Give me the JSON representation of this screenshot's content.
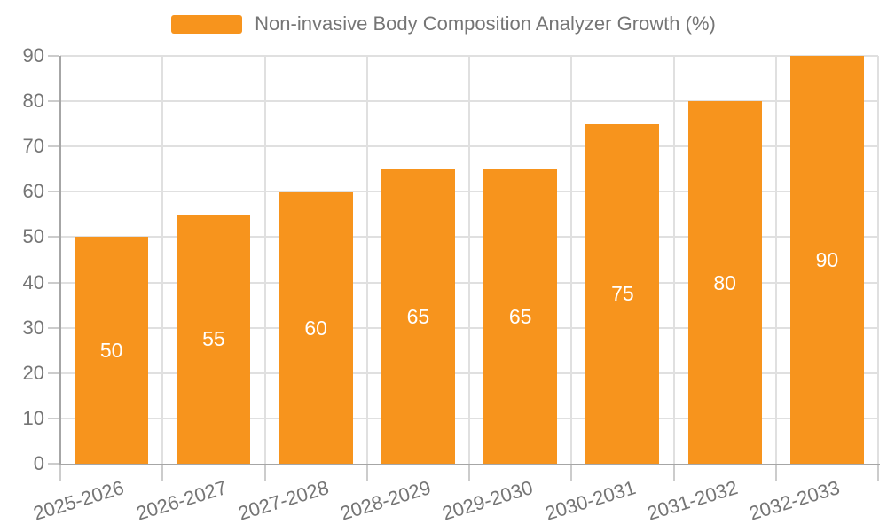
{
  "legend": {
    "label": "Non-invasive Body Composition Analyzer Growth (%)"
  },
  "colors": {
    "bar": "#f7941d",
    "grid": "#e0e0e0",
    "axis": "#a6a6a6",
    "tick": "#cccccc",
    "text": "#757575",
    "bar_label": "#ffffff",
    "background": "#ffffff"
  },
  "chart_data": {
    "type": "bar",
    "title": "Non-invasive Body Composition Analyzer Growth (%)",
    "categories": [
      "2025-2026",
      "2026-2027",
      "2027-2028",
      "2028-2029",
      "2029-2030",
      "2030-2031",
      "2031-2032",
      "2032-2033"
    ],
    "values": [
      50,
      55,
      60,
      65,
      65,
      75,
      80,
      90
    ],
    "xlabel": "",
    "ylabel": "",
    "ylim": [
      0,
      90
    ],
    "ytick_interval": 10,
    "ytick_labels": [
      "0",
      "10",
      "20",
      "30",
      "40",
      "50",
      "60",
      "70",
      "80",
      "90"
    ],
    "grid": true,
    "legend_position": "top-center",
    "bar_label_position": "inside-center",
    "x_label_rotation_deg": -17
  }
}
